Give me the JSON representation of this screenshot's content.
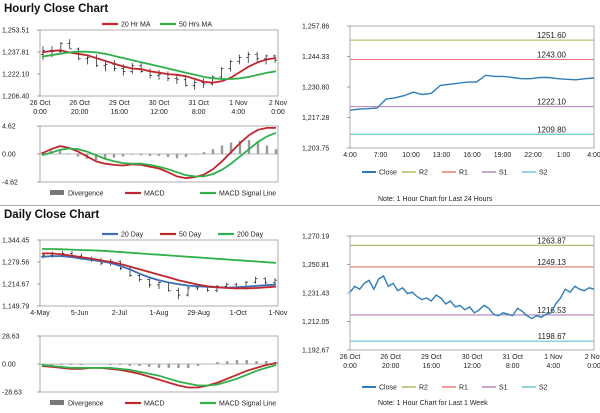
{
  "hourly": {
    "title": "Hourly Close Chart",
    "price_panel": {
      "chart_data": {
        "type": "line",
        "y_ticks": [
          "1,253.51",
          "1,237.81",
          "1,222.10",
          "1,206.40"
        ],
        "ylim": [
          1206.4,
          1253.51
        ],
        "x_ticks": [
          [
            "26 Oct",
            "0:00"
          ],
          [
            "26 Oct",
            "20:00"
          ],
          [
            "29 Oct",
            "16:00"
          ],
          [
            "30 Oct",
            "12:00"
          ],
          [
            "31 Oct",
            "8:00"
          ],
          [
            "1 Nov",
            "4:00"
          ],
          [
            "2 Nov",
            "0:00"
          ]
        ],
        "legend": [
          "20 Hr MA",
          "50 Hrs MA"
        ],
        "series": [
          {
            "name": "20 Hr MA",
            "color": "#c0272d",
            "values": [
              1237.5,
              1238.5,
              1239,
              1237.5,
              1236.5,
              1235.5,
              1233.5,
              1231.5,
              1229.5,
              1227.5,
              1226,
              1225.5,
              1224,
              1223,
              1222,
              1221.5,
              1220.5,
              1218.5,
              1216.5,
              1216,
              1217,
              1219.5,
              1223.5,
              1227.5,
              1230.5,
              1232.5,
              1233.5
            ]
          },
          {
            "name": "50 Hrs MA",
            "color": "#2fb04a",
            "values": [
              1234.5,
              1235.5,
              1236.5,
              1237.5,
              1238,
              1238,
              1237.5,
              1236.5,
              1235,
              1233.5,
              1232,
              1230.5,
              1229,
              1227.5,
              1226,
              1224.5,
              1223,
              1221.5,
              1220,
              1219,
              1218.5,
              1218.5,
              1219,
              1220,
              1221.5,
              1223,
              1224
            ]
          }
        ],
        "bars": [
          [
            1236,
            1242,
            1232,
            1239
          ],
          [
            1239,
            1242,
            1234,
            1238
          ],
          [
            1238,
            1245,
            1236,
            1244
          ],
          [
            1244,
            1247,
            1240,
            1240
          ],
          [
            1240,
            1241,
            1232,
            1233
          ],
          [
            1233,
            1236,
            1229,
            1234
          ],
          [
            1234,
            1236,
            1227,
            1228
          ],
          [
            1228,
            1231,
            1224,
            1229
          ],
          [
            1229,
            1232,
            1224,
            1226
          ],
          [
            1226,
            1229,
            1221,
            1224
          ],
          [
            1224,
            1230,
            1222,
            1228
          ],
          [
            1228,
            1231,
            1223,
            1224
          ],
          [
            1224,
            1226,
            1219,
            1221
          ],
          [
            1221,
            1225,
            1218,
            1222
          ],
          [
            1222,
            1224,
            1217,
            1219
          ],
          [
            1219,
            1222,
            1215,
            1218
          ],
          [
            1218,
            1221,
            1213,
            1214
          ],
          [
            1214,
            1218,
            1211,
            1216
          ],
          [
            1216,
            1219,
            1212,
            1215
          ],
          [
            1215,
            1221,
            1214,
            1220
          ],
          [
            1220,
            1227,
            1218,
            1226
          ],
          [
            1226,
            1232,
            1224,
            1231
          ],
          [
            1231,
            1236,
            1229,
            1234
          ],
          [
            1234,
            1238,
            1230,
            1236
          ],
          [
            1236,
            1238,
            1231,
            1233
          ],
          [
            1233,
            1236,
            1229,
            1235
          ],
          [
            1235,
            1236,
            1230,
            1232
          ]
        ]
      }
    },
    "macd_panel": {
      "chart_data": {
        "type": "line",
        "y_ticks": [
          "4.62",
          "0.00",
          "-4.62"
        ],
        "ylim": [
          -4.62,
          4.62
        ],
        "legend": [
          "Divergence",
          "MACD",
          "MACD Signal Line"
        ],
        "series": [
          {
            "name": "MACD",
            "color": "#c0272d",
            "values": [
              0.1,
              0.8,
              1.3,
              1.0,
              0.4,
              -0.4,
              -1.2,
              -1.6,
              -1.8,
              -1.9,
              -1.7,
              -1.8,
              -2.1,
              -2.4,
              -3.0,
              -3.7,
              -4.0,
              -3.8,
              -3.4,
              -2.5,
              -1.2,
              0.3,
              1.8,
              3.1,
              4.0,
              4.3,
              4.3
            ]
          },
          {
            "name": "MACD Signal Line",
            "color": "#2fb04a",
            "values": [
              -0.2,
              0.2,
              0.7,
              0.9,
              0.8,
              0.4,
              -0.2,
              -0.8,
              -1.2,
              -1.5,
              -1.6,
              -1.6,
              -1.8,
              -2.1,
              -2.5,
              -3.0,
              -3.5,
              -3.7,
              -3.7,
              -3.3,
              -2.6,
              -1.6,
              -0.4,
              0.8,
              2.0,
              2.9,
              3.5
            ]
          },
          {
            "name": "Divergence",
            "color": "#999999",
            "values": [
              0.3,
              0.6,
              0.6,
              0.1,
              -0.4,
              -0.8,
              -1.0,
              -0.8,
              -0.6,
              -0.4,
              -0.1,
              -0.2,
              -0.3,
              -0.3,
              -0.5,
              -0.7,
              -0.5,
              -0.1,
              0.3,
              0.8,
              1.4,
              1.9,
              2.2,
              2.3,
              2.0,
              1.4,
              0.8
            ]
          }
        ]
      }
    },
    "pivot_panel": {
      "chart_data": {
        "type": "line",
        "y_ticks": [
          "1,257.86",
          "1,244.33",
          "1,230.80",
          "1,217.28",
          "1,203.75"
        ],
        "ylim": [
          1203.75,
          1257.86
        ],
        "x_ticks": [
          "4:00",
          "7:00",
          "10:00",
          "13:00",
          "16:00",
          "19:00",
          "22:00",
          "1:00",
          "4:00"
        ],
        "levels": [
          {
            "name": "R2",
            "value": 1251.6,
            "label": "1251.60",
            "color": "#a8b957"
          },
          {
            "name": "R1",
            "value": 1243.0,
            "label": "1243.00",
            "color": "#e3786f"
          },
          {
            "name": "S1",
            "value": 1222.1,
            "label": "1222.10",
            "color": "#b07fb7"
          },
          {
            "name": "S2",
            "value": 1209.8,
            "label": "1209.80",
            "color": "#67c3d0"
          }
        ],
        "series": [
          {
            "name": "Close",
            "color": "#2f7db8",
            "values": [
              1220.5,
              1221,
              1221.2,
              1221.5,
              1225.5,
              1226,
              1227,
              1228.5,
              1227.5,
              1228,
              1231.5,
              1232,
              1232.5,
              1233,
              1233,
              1236,
              1235.5,
              1235.5,
              1235,
              1234.5,
              1234.5,
              1235,
              1235,
              1234.5,
              1234.2,
              1234,
              1234.5,
              1234.8
            ]
          }
        ],
        "legend": [
          "Close",
          "R2",
          "R1",
          "S1",
          "S2"
        ]
      },
      "note": "Note: 1 Hour Chart for Last 24 Hours"
    }
  },
  "daily": {
    "title": "Daily Close Chart",
    "price_panel": {
      "chart_data": {
        "type": "line",
        "y_ticks": [
          "1,344.45",
          "1,279.56",
          "1,214.67",
          "1,149.79"
        ],
        "ylim": [
          1149.79,
          1344.45
        ],
        "x_ticks": [
          "4-May",
          "5-Jun",
          "2-Jul",
          "1-Aug",
          "29-Aug",
          "1-Oct",
          "1-Nov"
        ],
        "legend": [
          "20 Day",
          "50 Day",
          "200 Day"
        ],
        "series": [
          {
            "name": "20 Day",
            "color": "#3b6fb6",
            "values": [
              1295,
              1297,
              1297,
              1294,
              1290,
              1286,
              1282,
              1277,
              1268,
              1258,
              1245,
              1234,
              1226,
              1219,
              1214,
              1210,
              1208,
              1206,
              1205,
              1204,
              1205,
              1207,
              1209,
              1211,
              1213
            ]
          },
          {
            "name": "50 Day",
            "color": "#c0272d",
            "values": [
              1305,
              1305,
              1302,
              1298,
              1294,
              1290,
              1285,
              1280,
              1274,
              1266,
              1258,
              1250,
              1242,
              1234,
              1226,
              1219,
              1213,
              1208,
              1205,
              1203,
              1202,
              1202,
              1203,
              1205,
              1207
            ]
          },
          {
            "name": "200 Day",
            "color": "#2fb04a",
            "values": [
              1318,
              1318,
              1317,
              1316,
              1315,
              1314,
              1313,
              1311,
              1309,
              1307,
              1305,
              1303,
              1301,
              1299,
              1297,
              1295,
              1293,
              1291,
              1289,
              1287,
              1285,
              1283,
              1281,
              1279,
              1277
            ]
          }
        ],
        "bars": [
          [
            1295,
            1305,
            1290,
            1300
          ],
          [
            1300,
            1310,
            1292,
            1298
          ],
          [
            1298,
            1312,
            1294,
            1305
          ],
          [
            1305,
            1312,
            1295,
            1297
          ],
          [
            1297,
            1305,
            1286,
            1289
          ],
          [
            1289,
            1296,
            1280,
            1284
          ],
          [
            1284,
            1292,
            1270,
            1276
          ],
          [
            1276,
            1288,
            1268,
            1282
          ],
          [
            1282,
            1284,
            1256,
            1260
          ],
          [
            1260,
            1266,
            1236,
            1240
          ],
          [
            1240,
            1246,
            1222,
            1228
          ],
          [
            1228,
            1232,
            1204,
            1212
          ],
          [
            1212,
            1222,
            1200,
            1219
          ],
          [
            1219,
            1222,
            1192,
            1196
          ],
          [
            1196,
            1204,
            1170,
            1182
          ],
          [
            1182,
            1208,
            1178,
            1203
          ],
          [
            1203,
            1212,
            1196,
            1206
          ],
          [
            1206,
            1210,
            1192,
            1196
          ],
          [
            1196,
            1212,
            1190,
            1208
          ],
          [
            1208,
            1218,
            1202,
            1214
          ],
          [
            1214,
            1218,
            1198,
            1202
          ],
          [
            1202,
            1224,
            1198,
            1220
          ],
          [
            1220,
            1236,
            1216,
            1230
          ],
          [
            1230,
            1234,
            1214,
            1218
          ],
          [
            1218,
            1232,
            1214,
            1226
          ]
        ]
      }
    },
    "macd_panel": {
      "chart_data": {
        "type": "line",
        "y_ticks": [
          "28.63",
          "0.00",
          "-28.63"
        ],
        "ylim": [
          -28.63,
          28.63
        ],
        "legend": [
          "Divergence",
          "MACD",
          "MACD Signal Line"
        ],
        "series": [
          {
            "name": "MACD",
            "color": "#c0272d",
            "values": [
              -2,
              -3,
              -4,
              -5,
              -5,
              -4,
              -4,
              -5,
              -6,
              -8,
              -10,
              -13,
              -16,
              -19,
              -22,
              -24,
              -24,
              -22,
              -19,
              -15,
              -11,
              -7,
              -4,
              -1,
              1
            ]
          },
          {
            "name": "MACD Signal Line",
            "color": "#2fb04a",
            "values": [
              -1,
              -2,
              -3,
              -4,
              -4,
              -4,
              -4,
              -4,
              -5,
              -6,
              -8,
              -10,
              -12,
              -15,
              -18,
              -20,
              -22,
              -22,
              -21,
              -18,
              -15,
              -11,
              -7,
              -4,
              -1
            ]
          },
          {
            "name": "Divergence",
            "color": "#999999",
            "values": [
              -1,
              -1,
              -1,
              -1,
              -1,
              0,
              0,
              -1,
              -1,
              -2,
              -2,
              -3,
              -4,
              -4,
              -4,
              -4,
              -2,
              0,
              2,
              3,
              4,
              4,
              3,
              3,
              2
            ]
          }
        ]
      }
    },
    "pivot_panel": {
      "chart_data": {
        "type": "line",
        "y_ticks": [
          "1,270.19",
          "1,250.81",
          "1,231.43",
          "1,212.05",
          "1,192.67"
        ],
        "ylim": [
          1192.67,
          1270.19
        ],
        "x_ticks": [
          [
            "26 Oct",
            "0:00"
          ],
          [
            "26 Oct",
            "20:00"
          ],
          [
            "29 Oct",
            "16:00"
          ],
          [
            "30 Oct",
            "12:00"
          ],
          [
            "31 Oct",
            "8:00"
          ],
          [
            "1 Nov",
            "4:00"
          ],
          [
            "2 Nov",
            "0:00"
          ]
        ],
        "levels": [
          {
            "name": "R2",
            "value": 1263.87,
            "label": "1263.87",
            "color": "#a8b957"
          },
          {
            "name": "R1",
            "value": 1249.13,
            "label": "1249.13",
            "color": "#e3786f"
          },
          {
            "name": "S1",
            "value": 1216.53,
            "label": "1216.53",
            "color": "#b07fb7"
          },
          {
            "name": "S2",
            "value": 1198.67,
            "label": "1198.67",
            "color": "#67c3d0"
          }
        ],
        "series": [
          {
            "name": "Close",
            "color": "#2f7db8",
            "values": [
              1232,
              1236,
              1234,
              1238,
              1240,
              1234,
              1241,
              1243,
              1236,
              1238,
              1233,
              1235,
              1231,
              1232,
              1229,
              1227,
              1228,
              1226,
              1230,
              1228,
              1224,
              1226,
              1222,
              1223,
              1220,
              1222,
              1218,
              1220,
              1223,
              1221,
              1217,
              1216,
              1218,
              1217,
              1216,
              1221,
              1219,
              1216,
              1214,
              1216,
              1215,
              1217,
              1218,
              1224,
              1228,
              1234,
              1232,
              1236,
              1234,
              1233,
              1235,
              1234
            ]
          }
        ],
        "legend": [
          "Close",
          "R2",
          "R1",
          "S1",
          "S2"
        ]
      },
      "note": "Note: 1 Hour Chart for Last 1 Week"
    }
  }
}
